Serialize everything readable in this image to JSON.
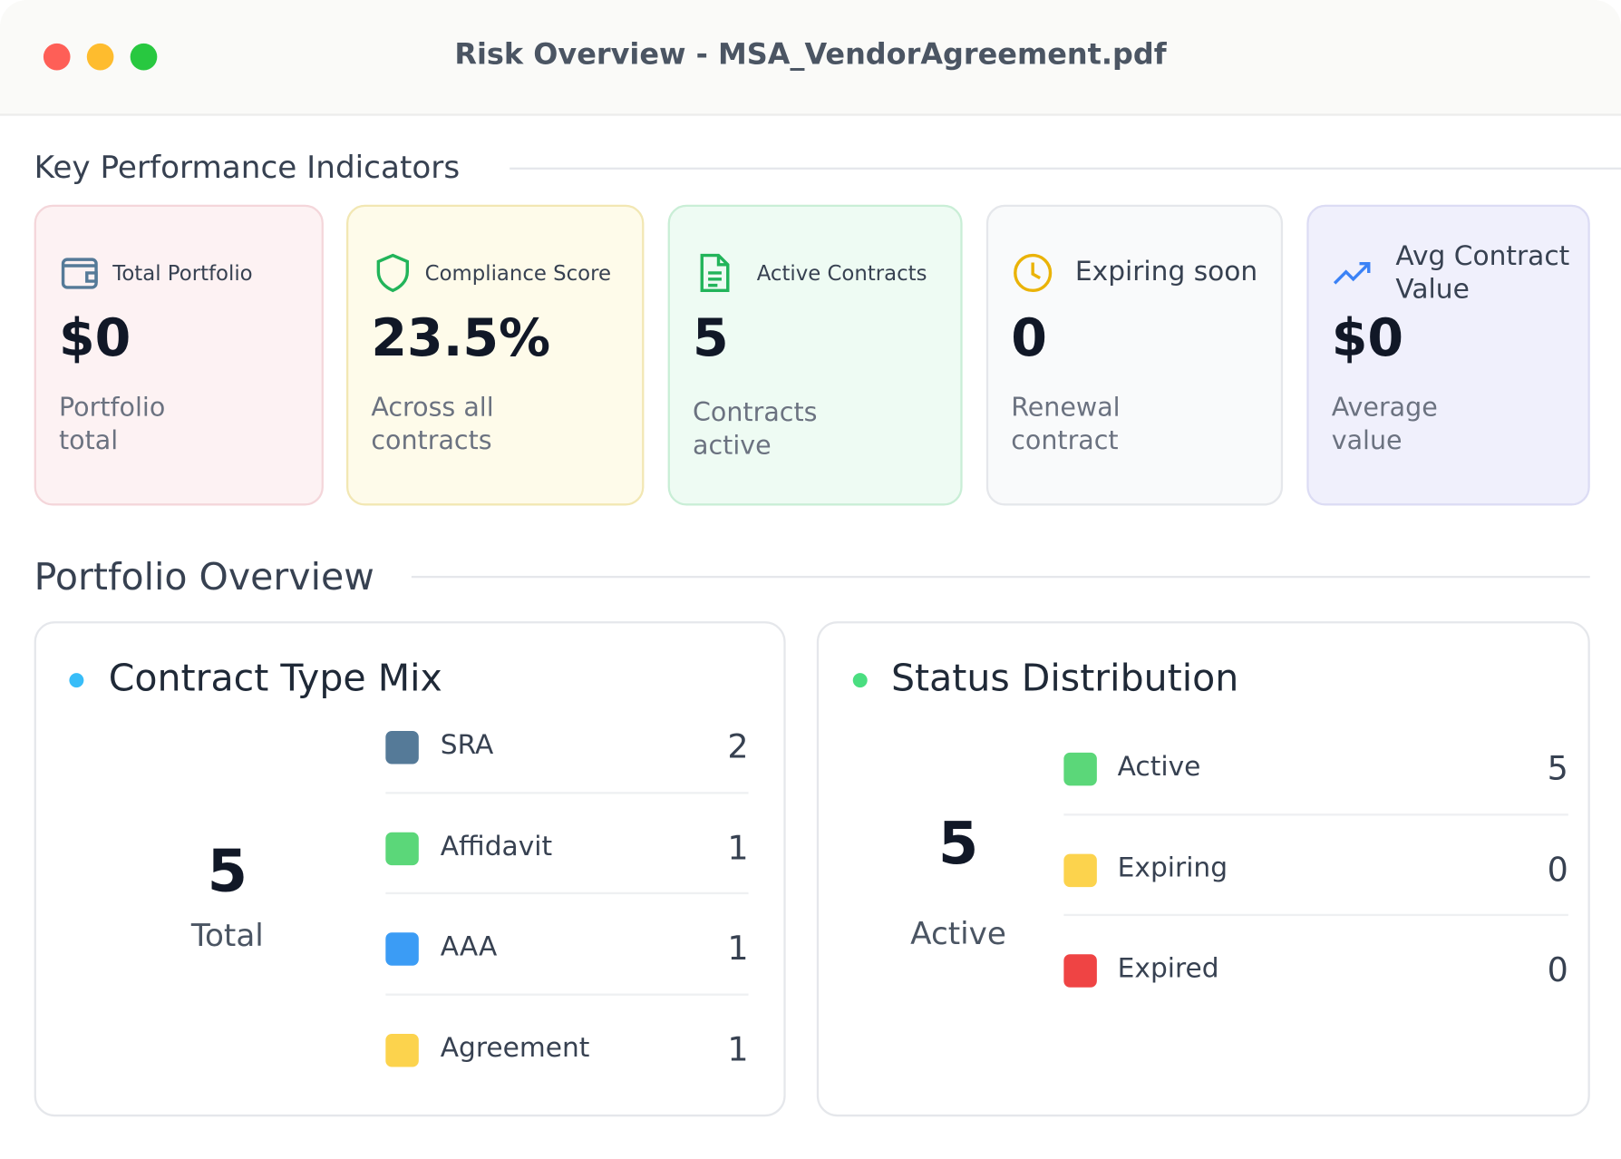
{
  "window": {
    "title": "Risk Overview - MSA_VendorAgreement.pdf"
  },
  "kpi": {
    "heading": "Key Performance Indicators",
    "cards": [
      {
        "label": "Total Portfolio",
        "value": "$0",
        "caption": "Portfolio total"
      },
      {
        "label": "Compliance Score",
        "value": "23.5%",
        "caption": "Across all contracts"
      },
      {
        "label": "Active Contracts",
        "value": 5,
        "caption": "Contracts active"
      },
      {
        "label": "Expiring soon",
        "value": 0,
        "caption": "Renewal contract"
      },
      {
        "label": "Avg Contract Value",
        "value": "$0",
        "caption": "Average value"
      }
    ]
  },
  "portfolio": {
    "heading": "Portfolio Overview",
    "panels": [
      {
        "title": "Contract Type Mix",
        "center_value": 5,
        "center_label": "Total",
        "items": [
          {
            "name": "SRA",
            "value": 2,
            "color": "#557a98"
          },
          {
            "name": "Affidavit",
            "value": 1,
            "color": "#5bd779"
          },
          {
            "name": "AAA",
            "value": 1,
            "color": "#3b9cf5"
          },
          {
            "name": "Agreement",
            "value": 1,
            "color": "#fcd34d"
          }
        ]
      },
      {
        "title": "Status Distribution",
        "center_value": 5,
        "center_label": "Active",
        "items": [
          {
            "name": "Active",
            "value": 5,
            "color": "#5bd779"
          },
          {
            "name": "Expiring",
            "value": 0,
            "color": "#fcd34d"
          },
          {
            "name": "Expired",
            "value": 0,
            "color": "#ef4444"
          }
        ]
      }
    ]
  }
}
